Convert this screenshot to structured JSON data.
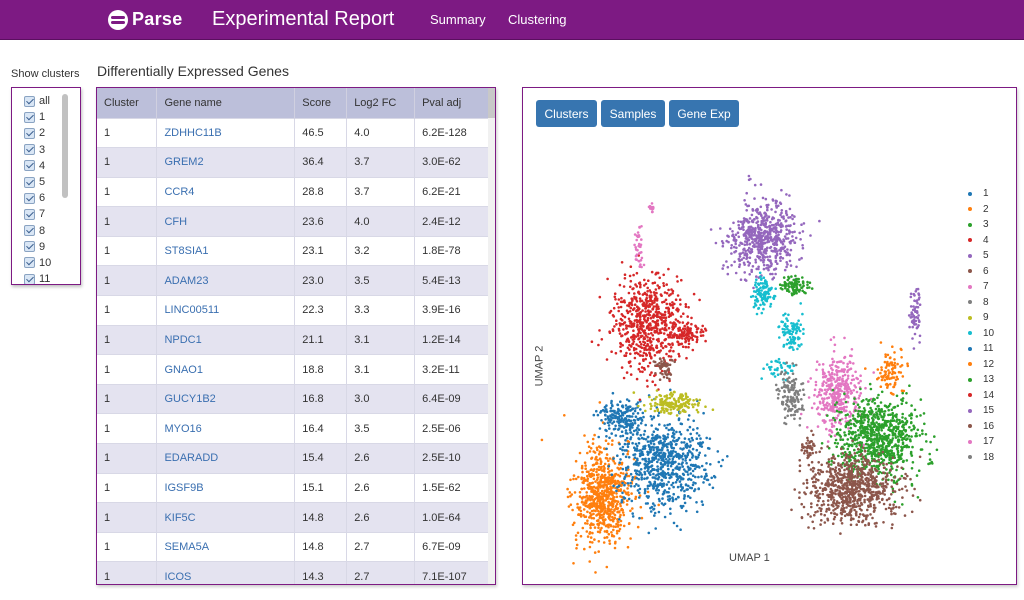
{
  "header": {
    "logo_text": "Parse",
    "title": "Experimental Report",
    "nav": [
      "Summary",
      "Clustering"
    ]
  },
  "sidebar": {
    "label": "Show clusters",
    "items": [
      "all",
      "1",
      "2",
      "3",
      "4",
      "5",
      "6",
      "7",
      "8",
      "9",
      "10",
      "11"
    ]
  },
  "deg": {
    "title": "Differentially Expressed Genes",
    "columns": [
      "Cluster",
      "Gene name",
      "Score",
      "Log2 FC",
      "Pval adj"
    ],
    "rows": [
      [
        "1",
        "ZDHHC11B",
        "46.5",
        "4.0",
        "6.2E-128"
      ],
      [
        "1",
        "GREM2",
        "36.4",
        "3.7",
        "3.0E-62"
      ],
      [
        "1",
        "CCR4",
        "28.8",
        "3.7",
        "6.2E-21"
      ],
      [
        "1",
        "CFH",
        "23.6",
        "4.0",
        "2.4E-12"
      ],
      [
        "1",
        "ST8SIA1",
        "23.1",
        "3.2",
        "1.8E-78"
      ],
      [
        "1",
        "ADAM23",
        "23.0",
        "3.5",
        "5.4E-13"
      ],
      [
        "1",
        "LINC00511",
        "22.3",
        "3.3",
        "3.9E-16"
      ],
      [
        "1",
        "NPDC1",
        "21.1",
        "3.1",
        "1.2E-14"
      ],
      [
        "1",
        "GNAO1",
        "18.8",
        "3.1",
        "3.2E-11"
      ],
      [
        "1",
        "GUCY1B2",
        "16.8",
        "3.0",
        "6.4E-09"
      ],
      [
        "1",
        "MYO16",
        "16.4",
        "3.5",
        "2.5E-06"
      ],
      [
        "1",
        "EDARADD",
        "15.4",
        "2.6",
        "2.5E-10"
      ],
      [
        "1",
        "IGSF9B",
        "15.1",
        "2.6",
        "1.5E-62"
      ],
      [
        "1",
        "KIF5C",
        "14.8",
        "2.6",
        "1.0E-64"
      ],
      [
        "1",
        "SEMA5A",
        "14.8",
        "2.7",
        "6.7E-09"
      ],
      [
        "1",
        "ICOS",
        "14.3",
        "2.7",
        "7.1E-107"
      ]
    ]
  },
  "plot": {
    "buttons": [
      "Clusters",
      "Samples",
      "Gene Exp"
    ],
    "xlabel": "UMAP 1",
    "ylabel": "UMAP 2",
    "legend": [
      "1",
      "2",
      "3",
      "4",
      "5",
      "6",
      "7",
      "8",
      "9",
      "10",
      "11",
      "12",
      "13",
      "14",
      "15",
      "16",
      "17",
      "18"
    ],
    "colors": [
      "#1f77b4",
      "#ff7f0e",
      "#2ca02c",
      "#d62728",
      "#9467bd",
      "#8c564b",
      "#e377c2",
      "#7f7f7f",
      "#bcbd22",
      "#17becf",
      "#1f77b4",
      "#ff7f0e",
      "#2ca02c",
      "#d62728",
      "#9467bd",
      "#8c564b",
      "#e377c2",
      "#7f7f7f"
    ]
  }
}
